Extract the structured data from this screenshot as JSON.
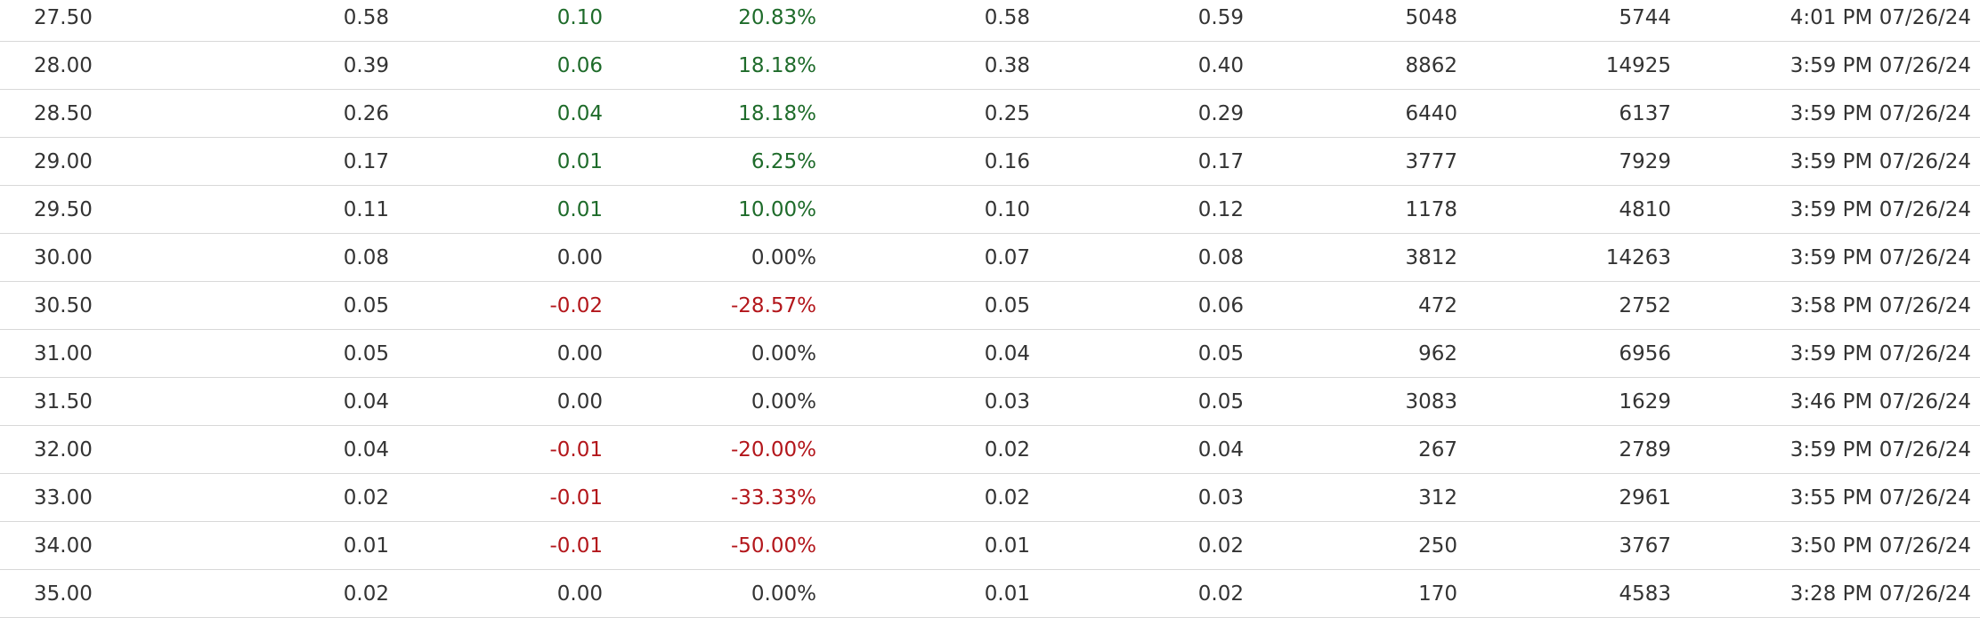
{
  "colors": {
    "positive": "#1e6b2a",
    "negative": "#b3161b",
    "neutral": "#333333",
    "divider": "#d8d8d8"
  },
  "rows": [
    {
      "strike": "27.50",
      "last": "0.58",
      "change": "0.10",
      "pct": "20.83%",
      "bid": "0.58",
      "ask": "0.59",
      "volume": "5048",
      "oi": "5744",
      "time": "4:01 PM 07/26/24",
      "dir": "pos"
    },
    {
      "strike": "28.00",
      "last": "0.39",
      "change": "0.06",
      "pct": "18.18%",
      "bid": "0.38",
      "ask": "0.40",
      "volume": "8862",
      "oi": "14925",
      "time": "3:59 PM 07/26/24",
      "dir": "pos"
    },
    {
      "strike": "28.50",
      "last": "0.26",
      "change": "0.04",
      "pct": "18.18%",
      "bid": "0.25",
      "ask": "0.29",
      "volume": "6440",
      "oi": "6137",
      "time": "3:59 PM 07/26/24",
      "dir": "pos"
    },
    {
      "strike": "29.00",
      "last": "0.17",
      "change": "0.01",
      "pct": "6.25%",
      "bid": "0.16",
      "ask": "0.17",
      "volume": "3777",
      "oi": "7929",
      "time": "3:59 PM 07/26/24",
      "dir": "pos"
    },
    {
      "strike": "29.50",
      "last": "0.11",
      "change": "0.01",
      "pct": "10.00%",
      "bid": "0.10",
      "ask": "0.12",
      "volume": "1178",
      "oi": "4810",
      "time": "3:59 PM 07/26/24",
      "dir": "pos"
    },
    {
      "strike": "30.00",
      "last": "0.08",
      "change": "0.00",
      "pct": "0.00%",
      "bid": "0.07",
      "ask": "0.08",
      "volume": "3812",
      "oi": "14263",
      "time": "3:59 PM 07/26/24",
      "dir": "flat"
    },
    {
      "strike": "30.50",
      "last": "0.05",
      "change": "-0.02",
      "pct": "-28.57%",
      "bid": "0.05",
      "ask": "0.06",
      "volume": "472",
      "oi": "2752",
      "time": "3:58 PM 07/26/24",
      "dir": "neg"
    },
    {
      "strike": "31.00",
      "last": "0.05",
      "change": "0.00",
      "pct": "0.00%",
      "bid": "0.04",
      "ask": "0.05",
      "volume": "962",
      "oi": "6956",
      "time": "3:59 PM 07/26/24",
      "dir": "flat"
    },
    {
      "strike": "31.50",
      "last": "0.04",
      "change": "0.00",
      "pct": "0.00%",
      "bid": "0.03",
      "ask": "0.05",
      "volume": "3083",
      "oi": "1629",
      "time": "3:46 PM 07/26/24",
      "dir": "flat"
    },
    {
      "strike": "32.00",
      "last": "0.04",
      "change": "-0.01",
      "pct": "-20.00%",
      "bid": "0.02",
      "ask": "0.04",
      "volume": "267",
      "oi": "2789",
      "time": "3:59 PM 07/26/24",
      "dir": "neg"
    },
    {
      "strike": "33.00",
      "last": "0.02",
      "change": "-0.01",
      "pct": "-33.33%",
      "bid": "0.02",
      "ask": "0.03",
      "volume": "312",
      "oi": "2961",
      "time": "3:55 PM 07/26/24",
      "dir": "neg"
    },
    {
      "strike": "34.00",
      "last": "0.01",
      "change": "-0.01",
      "pct": "-50.00%",
      "bid": "0.01",
      "ask": "0.02",
      "volume": "250",
      "oi": "3767",
      "time": "3:50 PM 07/26/24",
      "dir": "neg"
    },
    {
      "strike": "35.00",
      "last": "0.02",
      "change": "0.00",
      "pct": "0.00%",
      "bid": "0.01",
      "ask": "0.02",
      "volume": "170",
      "oi": "4583",
      "time": "3:28 PM 07/26/24",
      "dir": "flat"
    }
  ]
}
